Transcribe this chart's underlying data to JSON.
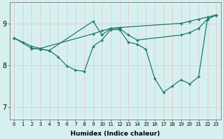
{
  "xlabel": "Humidex (Indice chaleur)",
  "bg_color": "#d6f0f0",
  "grid_color": "#c0dada",
  "line_color": "#1e7a6a",
  "xlim": [
    -0.5,
    23.5
  ],
  "ylim": [
    6.7,
    9.5
  ],
  "yticks": [
    7,
    8,
    9
  ],
  "xticks": [
    0,
    1,
    2,
    3,
    4,
    5,
    6,
    7,
    8,
    9,
    10,
    11,
    12,
    13,
    14,
    15,
    16,
    17,
    18,
    19,
    20,
    21,
    22,
    23
  ],
  "series": [
    {
      "x": [
        0,
        1,
        2,
        3,
        9,
        10,
        11,
        12,
        19,
        20,
        21,
        22,
        23
      ],
      "y": [
        8.65,
        8.55,
        8.45,
        8.4,
        8.75,
        8.82,
        8.88,
        8.9,
        9.0,
        9.05,
        9.1,
        9.15,
        9.2
      ]
    },
    {
      "x": [
        0,
        2,
        3,
        4,
        9,
        10,
        11,
        12,
        13,
        14,
        19,
        20,
        21,
        22,
        23
      ],
      "y": [
        8.65,
        8.4,
        8.38,
        8.35,
        9.05,
        8.72,
        8.88,
        8.88,
        8.72,
        8.6,
        8.72,
        8.78,
        8.88,
        9.1,
        9.2
      ]
    },
    {
      "x": [
        2,
        3,
        4,
        5,
        6,
        7,
        8,
        9,
        10,
        11,
        12,
        13,
        14,
        15,
        16,
        17,
        18,
        19,
        20,
        21,
        22,
        23
      ],
      "y": [
        8.4,
        8.38,
        8.35,
        8.2,
        7.98,
        7.88,
        7.85,
        8.45,
        8.6,
        8.85,
        8.85,
        8.55,
        8.5,
        8.38,
        7.68,
        7.35,
        7.5,
        7.65,
        7.55,
        7.72,
        9.1,
        9.2
      ]
    }
  ]
}
